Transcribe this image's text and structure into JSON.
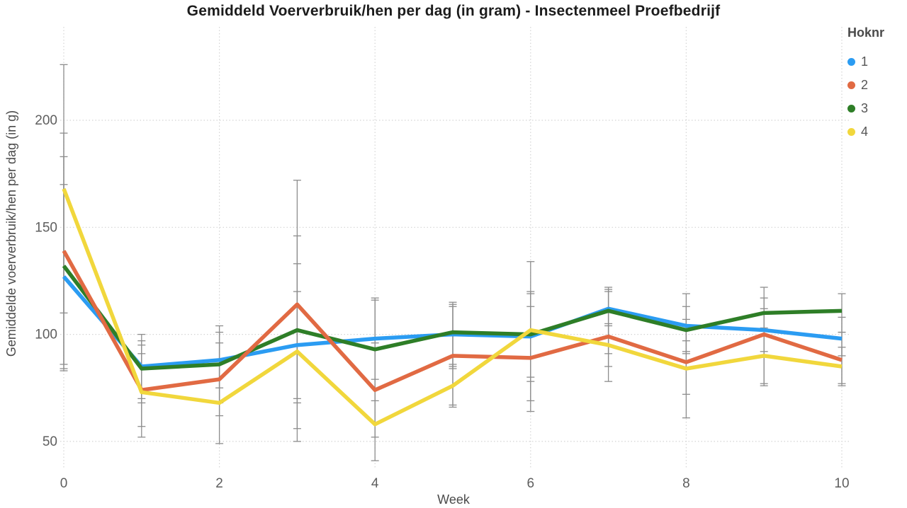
{
  "chart_data": {
    "type": "line",
    "title": "Gemiddeld Voerverbruik/hen per dag (in gram) - Insectenmeel Proefbedrijf",
    "xlabel": "Week",
    "ylabel": "Gemiddelde voerverbruik/hen per dag (in g)",
    "legend_title": "Hoknr",
    "legend_position": "top-right",
    "grid": true,
    "gridline_color": "#d4d4d4",
    "error_bars": true,
    "error_bar_color": "#8d8d8d",
    "x": [
      0,
      1,
      2,
      3,
      4,
      5,
      6,
      7,
      8,
      9,
      10
    ],
    "x_ticks": [
      0,
      2,
      4,
      6,
      8,
      10
    ],
    "y_ticks": [
      50,
      100,
      150,
      200
    ],
    "xlim": [
      0,
      10
    ],
    "ylim": [
      37,
      244
    ],
    "series": [
      {
        "name": "1",
        "color": "#2B9CF2",
        "values": [
          127,
          85,
          88,
          95,
          98,
          100,
          99,
          112,
          104,
          102,
          98
        ],
        "err_low": [
          84,
          70,
          75,
          70,
          79,
          84,
          78,
          104,
          92,
          92,
          90
        ],
        "err_high": [
          170,
          100,
          101,
          120,
          117,
          114,
          120,
          121,
          119,
          112,
          108
        ]
      },
      {
        "name": "2",
        "color": "#E16A43",
        "values": [
          139,
          74,
          79,
          114,
          74,
          90,
          89,
          99,
          87,
          100,
          88
        ],
        "err_low": [
          86,
          57,
          62,
          56,
          52,
          67,
          64,
          78,
          61,
          76,
          77
        ],
        "err_high": [
          194,
          91,
          96,
          172,
          96,
          113,
          113,
          120,
          107,
          122,
          101
        ]
      },
      {
        "name": "3",
        "color": "#2E7E27",
        "values": [
          132,
          84,
          86,
          102,
          93,
          101,
          100,
          111,
          102,
          110,
          111
        ],
        "err_low": [
          83,
          68,
          68,
          68,
          69,
          85,
          80,
          91,
          91,
          100,
          101
        ],
        "err_high": [
          183,
          97,
          104,
          133,
          116,
          115,
          119,
          122,
          113,
          117,
          119
        ]
      },
      {
        "name": "4",
        "color": "#F1D73C",
        "values": [
          168,
          73,
          68,
          92,
          58,
          76,
          102,
          95,
          84,
          90,
          85
        ],
        "err_low": [
          110,
          52,
          49,
          50,
          41,
          66,
          69,
          85,
          72,
          77,
          76
        ],
        "err_high": [
          226,
          95,
          88,
          146,
          75,
          86,
          134,
          105,
          97,
          103,
          94
        ]
      }
    ]
  }
}
